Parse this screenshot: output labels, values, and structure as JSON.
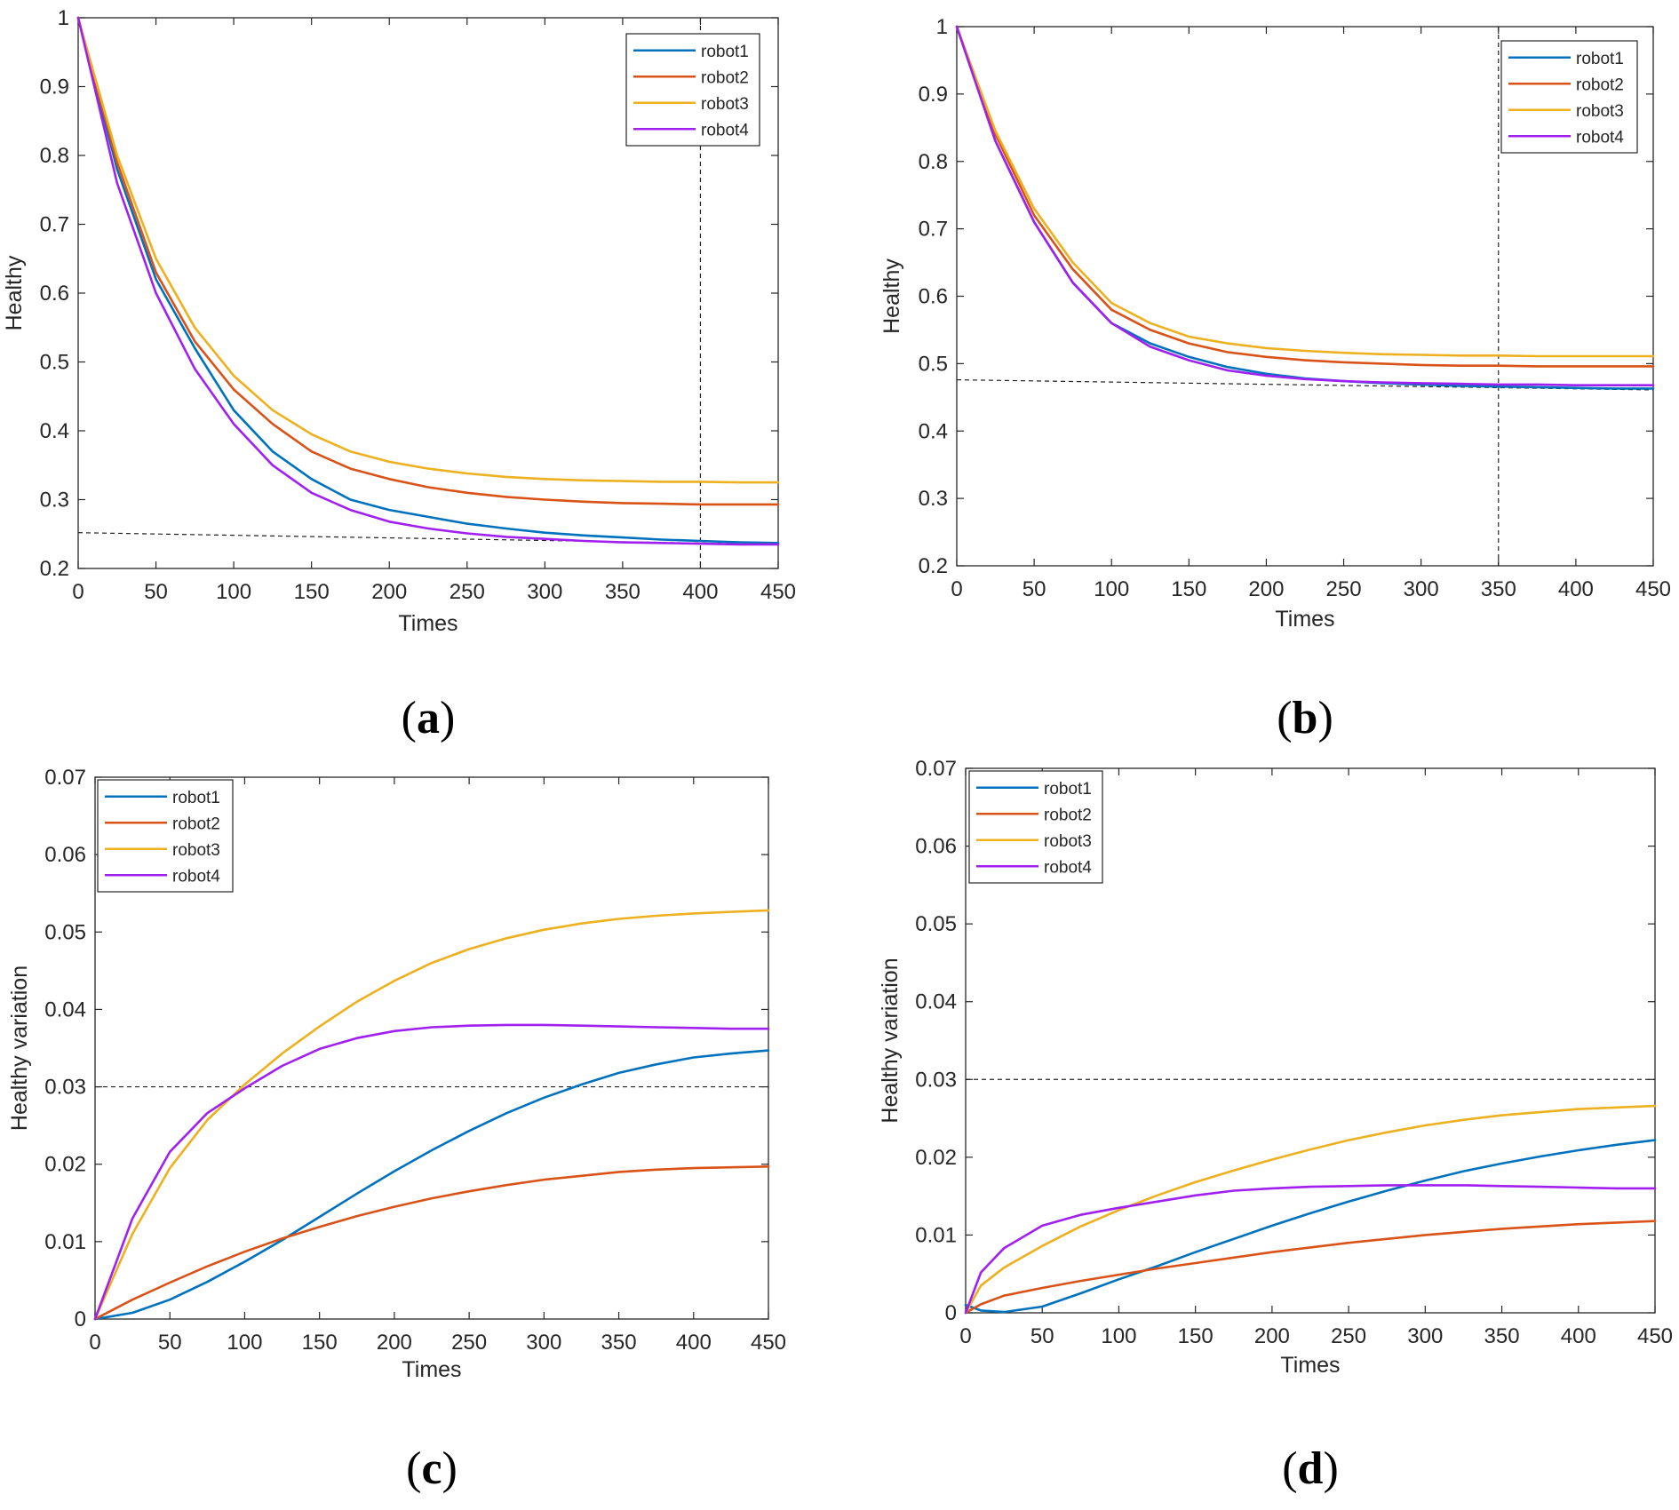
{
  "chart_data": [
    {
      "id": "a",
      "type": "line",
      "caption": {
        "open": "(",
        "letter": "a",
        "close": ")"
      },
      "title": "",
      "xlabel": "Times",
      "ylabel": "Healthy",
      "xlim": [
        0,
        450
      ],
      "ylim": [
        0.2,
        1
      ],
      "xticks": [
        0,
        50,
        100,
        150,
        200,
        250,
        300,
        350,
        400,
        450
      ],
      "xtick_labels": [
        "0",
        "50",
        "100",
        "150",
        "200",
        "250",
        "300",
        "350",
        "400",
        "450"
      ],
      "yticks": [
        0.2,
        0.3,
        0.4,
        0.5,
        0.6,
        0.7,
        0.8,
        0.9,
        1
      ],
      "ytick_labels": [
        "0.2",
        "0.3",
        "0.4",
        "0.5",
        "0.6",
        "0.7",
        "0.8",
        "0.9",
        "1"
      ],
      "legend_position": "top-right",
      "x": [
        0,
        25,
        50,
        75,
        100,
        125,
        150,
        175,
        200,
        225,
        250,
        275,
        300,
        325,
        350,
        375,
        400,
        425,
        450
      ],
      "series": [
        {
          "name": "robot1",
          "color": "#0072BD",
          "values": [
            1.0,
            0.78,
            0.62,
            0.52,
            0.43,
            0.37,
            0.33,
            0.3,
            0.285,
            0.275,
            0.265,
            0.258,
            0.252,
            0.248,
            0.245,
            0.242,
            0.24,
            0.238,
            0.237
          ]
        },
        {
          "name": "robot2",
          "color": "#D95319",
          "values": [
            1.0,
            0.79,
            0.63,
            0.53,
            0.46,
            0.41,
            0.37,
            0.345,
            0.33,
            0.318,
            0.31,
            0.304,
            0.3,
            0.297,
            0.295,
            0.294,
            0.293,
            0.293,
            0.293
          ]
        },
        {
          "name": "robot3",
          "color": "#EDB120",
          "values": [
            1.0,
            0.8,
            0.65,
            0.55,
            0.48,
            0.43,
            0.395,
            0.37,
            0.355,
            0.345,
            0.338,
            0.333,
            0.33,
            0.328,
            0.327,
            0.326,
            0.326,
            0.325,
            0.325
          ]
        },
        {
          "name": "robot4",
          "color": "#A020F0",
          "values": [
            1.0,
            0.76,
            0.6,
            0.49,
            0.41,
            0.35,
            0.31,
            0.285,
            0.268,
            0.258,
            0.251,
            0.246,
            0.243,
            0.24,
            0.238,
            0.237,
            0.236,
            0.235,
            0.235
          ]
        }
      ],
      "reference_lines": [
        {
          "type": "vertical",
          "x": 400
        },
        {
          "type": "segment",
          "x1": 0,
          "y1": 0.252,
          "x2": 450,
          "y2": 0.235
        }
      ]
    },
    {
      "id": "b",
      "type": "line",
      "caption": {
        "open": "(",
        "letter": "b",
        "close": ")"
      },
      "title": "",
      "xlabel": "Times",
      "ylabel": "Healthy",
      "xlim": [
        0,
        450
      ],
      "ylim": [
        0.2,
        1
      ],
      "xticks": [
        0,
        50,
        100,
        150,
        200,
        250,
        300,
        350,
        400,
        450
      ],
      "xtick_labels": [
        "0",
        "50",
        "100",
        "150",
        "200",
        "250",
        "300",
        "350",
        "400",
        "450"
      ],
      "yticks": [
        0.2,
        0.3,
        0.4,
        0.5,
        0.6,
        0.7,
        0.8,
        0.9,
        1
      ],
      "ytick_labels": [
        "0.2",
        "0.3",
        "0.4",
        "0.5",
        "0.6",
        "0.7",
        "0.8",
        "0.9",
        "1"
      ],
      "legend_position": "top-right",
      "x": [
        0,
        25,
        50,
        75,
        100,
        125,
        150,
        175,
        200,
        225,
        250,
        275,
        300,
        325,
        350,
        375,
        400,
        425,
        450
      ],
      "series": [
        {
          "name": "robot1",
          "color": "#0072BD",
          "values": [
            1.0,
            0.83,
            0.71,
            0.62,
            0.56,
            0.53,
            0.51,
            0.495,
            0.485,
            0.478,
            0.474,
            0.471,
            0.469,
            0.467,
            0.466,
            0.465,
            0.464,
            0.463,
            0.463
          ]
        },
        {
          "name": "robot2",
          "color": "#D95319",
          "values": [
            1.0,
            0.84,
            0.72,
            0.64,
            0.58,
            0.55,
            0.53,
            0.517,
            0.51,
            0.505,
            0.502,
            0.5,
            0.498,
            0.497,
            0.497,
            0.496,
            0.496,
            0.496,
            0.496
          ]
        },
        {
          "name": "robot3",
          "color": "#EDB120",
          "values": [
            1.0,
            0.845,
            0.73,
            0.65,
            0.59,
            0.56,
            0.54,
            0.53,
            0.523,
            0.519,
            0.516,
            0.514,
            0.513,
            0.512,
            0.512,
            0.511,
            0.511,
            0.511,
            0.511
          ]
        },
        {
          "name": "robot4",
          "color": "#A020F0",
          "values": [
            1.0,
            0.83,
            0.71,
            0.62,
            0.56,
            0.525,
            0.505,
            0.49,
            0.482,
            0.477,
            0.474,
            0.472,
            0.471,
            0.47,
            0.469,
            0.469,
            0.468,
            0.468,
            0.468
          ]
        }
      ],
      "reference_lines": [
        {
          "type": "vertical",
          "x": 350
        },
        {
          "type": "segment",
          "x1": 0,
          "y1": 0.476,
          "x2": 450,
          "y2": 0.461
        }
      ]
    },
    {
      "id": "c",
      "type": "line",
      "caption": {
        "open": "(",
        "letter": "c",
        "close": ")"
      },
      "title": "",
      "xlabel": "Times",
      "ylabel": "Healthy variation",
      "xlim": [
        0,
        450
      ],
      "ylim": [
        0,
        0.07
      ],
      "xticks": [
        0,
        50,
        100,
        150,
        200,
        250,
        300,
        350,
        400,
        450
      ],
      "xtick_labels": [
        "0",
        "50",
        "100",
        "150",
        "200",
        "250",
        "300",
        "350",
        "400",
        "450"
      ],
      "yticks": [
        0,
        0.01,
        0.02,
        0.03,
        0.04,
        0.05,
        0.06,
        0.07
      ],
      "ytick_labels": [
        "0",
        "0.01",
        "0.02",
        "0.03",
        "0.04",
        "0.05",
        "0.06",
        "0.07"
      ],
      "legend_position": "top-left",
      "x": [
        0,
        25,
        50,
        75,
        100,
        125,
        150,
        175,
        200,
        225,
        250,
        275,
        300,
        325,
        350,
        375,
        400,
        425,
        450
      ],
      "series": [
        {
          "name": "robot1",
          "color": "#0072BD",
          "values": [
            0,
            0.0008,
            0.0025,
            0.0048,
            0.0074,
            0.0102,
            0.0132,
            0.0162,
            0.0191,
            0.0218,
            0.0243,
            0.0266,
            0.0286,
            0.0303,
            0.0318,
            0.0329,
            0.0338,
            0.0343,
            0.0347
          ]
        },
        {
          "name": "robot2",
          "color": "#D95319",
          "values": [
            0,
            0.0025,
            0.0047,
            0.0068,
            0.0087,
            0.0104,
            0.0119,
            0.0133,
            0.0145,
            0.0156,
            0.0165,
            0.0173,
            0.018,
            0.0185,
            0.019,
            0.0193,
            0.0195,
            0.0196,
            0.0197
          ]
        },
        {
          "name": "robot3",
          "color": "#EDB120",
          "values": [
            0,
            0.011,
            0.0195,
            0.0257,
            0.0303,
            0.0343,
            0.0378,
            0.041,
            0.0437,
            0.046,
            0.0478,
            0.0492,
            0.0503,
            0.0511,
            0.0517,
            0.0521,
            0.0524,
            0.0526,
            0.0528
          ]
        },
        {
          "name": "robot4",
          "color": "#A020F0",
          "values": [
            0,
            0.013,
            0.0216,
            0.0266,
            0.0298,
            0.0327,
            0.0349,
            0.0363,
            0.0372,
            0.0377,
            0.0379,
            0.038,
            0.038,
            0.0379,
            0.0378,
            0.0377,
            0.0376,
            0.0375,
            0.0375
          ]
        }
      ],
      "reference_lines": [
        {
          "type": "horizontal",
          "y": 0.03
        }
      ]
    },
    {
      "id": "d",
      "type": "line",
      "caption": {
        "open": "(",
        "letter": "d",
        "close": ")"
      },
      "title": "",
      "xlabel": "Times",
      "ylabel": "Healthy variation",
      "xlim": [
        0,
        450
      ],
      "ylim": [
        0,
        0.07
      ],
      "xticks": [
        0,
        50,
        100,
        150,
        200,
        250,
        300,
        350,
        400,
        450
      ],
      "xtick_labels": [
        "0",
        "50",
        "100",
        "150",
        "200",
        "250",
        "300",
        "350",
        "400",
        "450"
      ],
      "yticks": [
        0,
        0.01,
        0.02,
        0.03,
        0.04,
        0.05,
        0.06,
        0.07
      ],
      "ytick_labels": [
        "0",
        "0.01",
        "0.02",
        "0.03",
        "0.04",
        "0.05",
        "0.06",
        "0.07"
      ],
      "legend_position": "top-left",
      "x": [
        0,
        10,
        25,
        50,
        75,
        100,
        125,
        150,
        175,
        200,
        225,
        250,
        275,
        300,
        325,
        350,
        375,
        400,
        425,
        450
      ],
      "series": [
        {
          "name": "robot1",
          "color": "#0072BD",
          "values": [
            0.001,
            0.0003,
            0.0001,
            0.0008,
            0.0025,
            0.0043,
            0.006,
            0.0078,
            0.0095,
            0.0112,
            0.0128,
            0.0143,
            0.0157,
            0.017,
            0.0182,
            0.0192,
            0.0201,
            0.0209,
            0.0216,
            0.0222
          ]
        },
        {
          "name": "robot2",
          "color": "#D95319",
          "values": [
            0,
            0.0011,
            0.0022,
            0.0032,
            0.0041,
            0.0049,
            0.0057,
            0.0064,
            0.0071,
            0.0078,
            0.0084,
            0.009,
            0.0095,
            0.01,
            0.0104,
            0.0108,
            0.0111,
            0.0114,
            0.0116,
            0.0118
          ]
        },
        {
          "name": "robot3",
          "color": "#EDB120",
          "values": [
            0,
            0.0035,
            0.0058,
            0.0086,
            0.0111,
            0.0132,
            0.0151,
            0.0168,
            0.0183,
            0.0197,
            0.021,
            0.0222,
            0.0232,
            0.0241,
            0.0248,
            0.0254,
            0.0258,
            0.0262,
            0.0264,
            0.0266
          ]
        },
        {
          "name": "robot4",
          "color": "#A020F0",
          "values": [
            0,
            0.0052,
            0.0083,
            0.0112,
            0.0126,
            0.0135,
            0.0143,
            0.0151,
            0.0157,
            0.016,
            0.0162,
            0.0163,
            0.0164,
            0.0164,
            0.0164,
            0.0163,
            0.0162,
            0.0161,
            0.016,
            0.016
          ]
        }
      ],
      "reference_lines": [
        {
          "type": "horizontal",
          "y": 0.03
        }
      ]
    }
  ]
}
